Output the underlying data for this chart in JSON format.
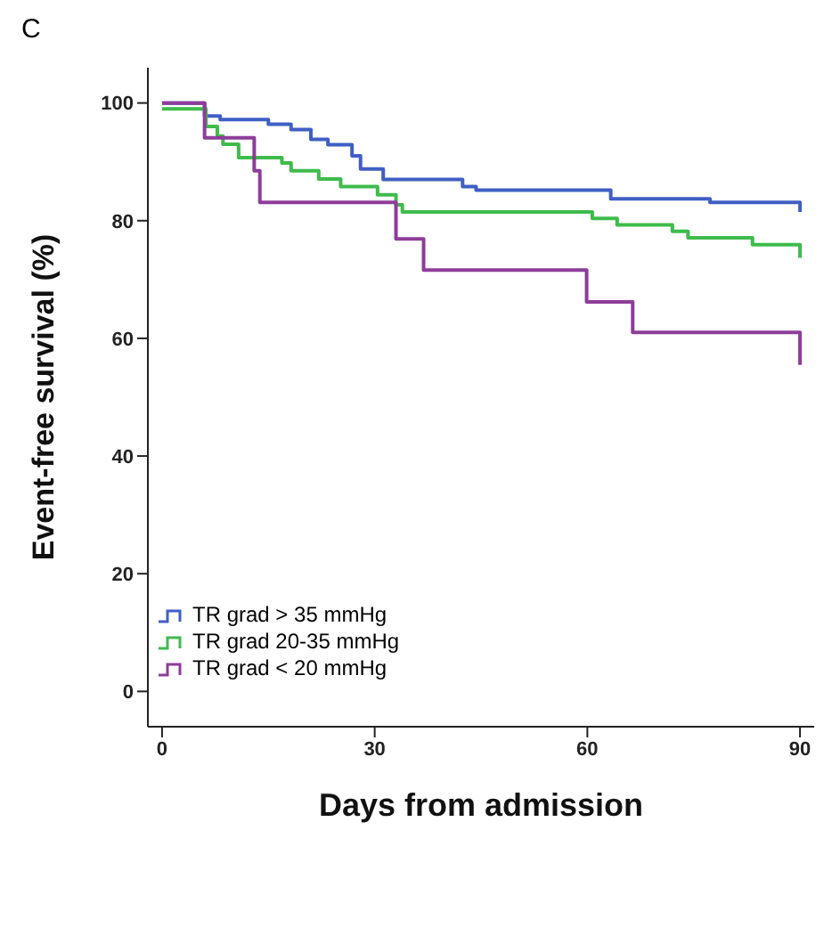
{
  "chart_data": {
    "type": "step",
    "title": "C",
    "xlabel": "Days from admission",
    "ylabel": "Event-free survival (%)",
    "xlim": [
      -2,
      92
    ],
    "xticks": [
      0,
      30,
      60,
      90
    ],
    "ylim": [
      -6,
      106
    ],
    "yticks": [
      0,
      20,
      40,
      60,
      80,
      100
    ],
    "legend": "bottom left",
    "marker": "none",
    "line_style": "solid",
    "series": [
      {
        "name": "TR grad > 35 mmHg",
        "color": "#3f5fc4",
        "x": [
          0,
          6,
          8.2,
          15,
          18.2,
          21,
          23.4,
          26.8,
          28,
          31.2,
          42.4,
          44.3,
          63.3,
          77.3,
          90
        ],
        "values": [
          100,
          97.8,
          97.2,
          96.4,
          95.5,
          93.8,
          92.9,
          91,
          88.8,
          87,
          85.8,
          85.2,
          83.7,
          83.1,
          81.5
        ]
      },
      {
        "name": "TR grad 20-35 mmHg",
        "color": "#3fbb4c",
        "x": [
          0,
          6.2,
          7.8,
          8.6,
          10.8,
          16.9,
          18.2,
          22.1,
          25.2,
          30.4,
          33,
          33.9,
          60.7,
          64.2,
          72,
          74.2,
          83.3,
          90
        ],
        "values": [
          99,
          96,
          94.4,
          93,
          90.7,
          89.8,
          88.5,
          87.1,
          85.8,
          84.4,
          82.7,
          81.5,
          80.4,
          79.3,
          78.2,
          77.1,
          75.9,
          73.7
        ]
      },
      {
        "name": "TR grad < 20 mmHg",
        "color": "#8e3c9a",
        "x": [
          0,
          6,
          13,
          13.8,
          33,
          36.9,
          59.9,
          66.4,
          90
        ],
        "values": [
          100,
          94.1,
          88.5,
          83.1,
          76.9,
          71.6,
          66.2,
          61,
          55.5
        ]
      }
    ]
  }
}
